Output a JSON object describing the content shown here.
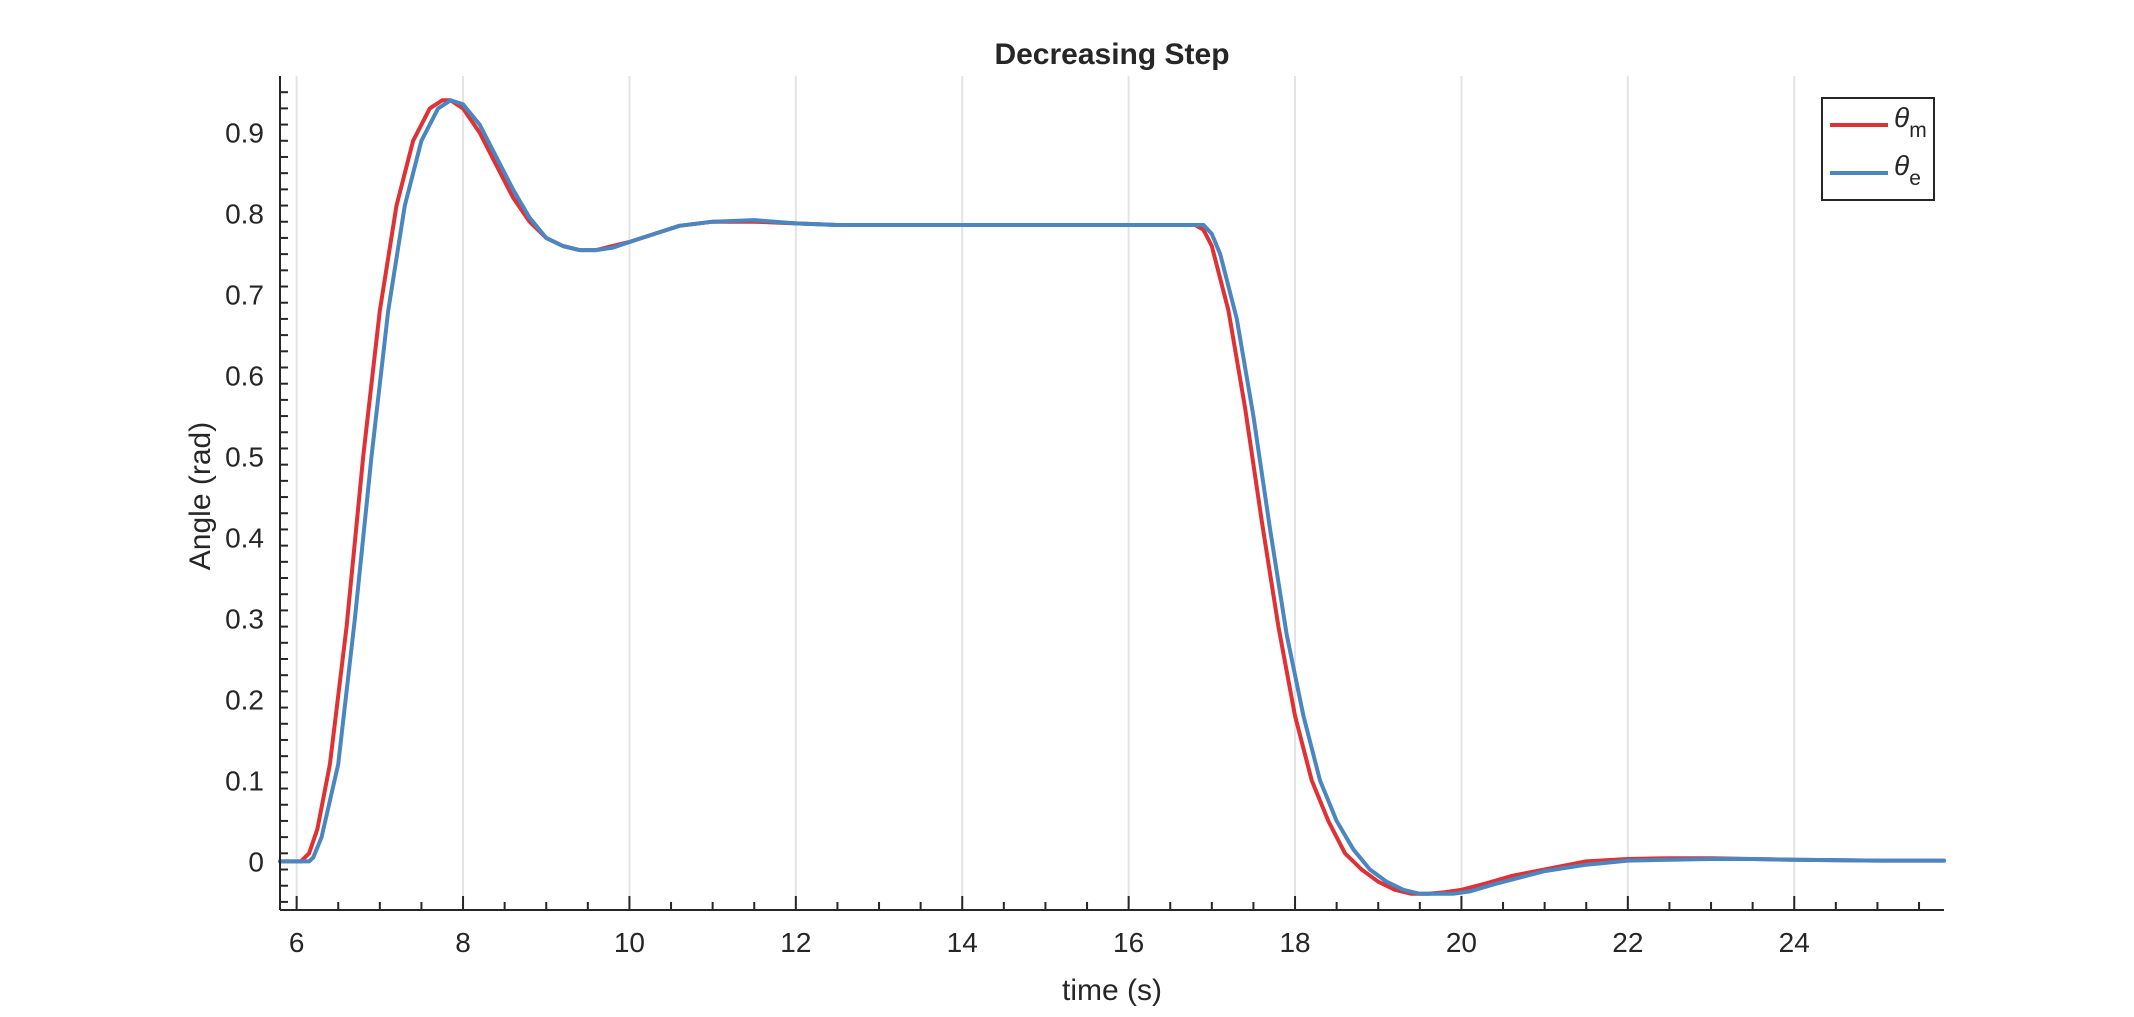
{
  "chart_data": {
    "type": "line",
    "title": "Decreasing Step",
    "xlabel": "time (s)",
    "ylabel": "Angle (rad)",
    "xlim": [
      5.8,
      25.8
    ],
    "ylim": [
      -0.06,
      0.97
    ],
    "xticks": [
      6,
      8,
      10,
      12,
      14,
      16,
      18,
      20,
      22,
      24
    ],
    "yticks": [
      0,
      0.1,
      0.2,
      0.3,
      0.4,
      0.5,
      0.6,
      0.7,
      0.8,
      0.9
    ],
    "xtick_labels": [
      "6",
      "8",
      "10",
      "12",
      "14",
      "16",
      "18",
      "20",
      "22",
      "24"
    ],
    "ytick_labels": [
      "0",
      "0.1",
      "0.2",
      "0.3",
      "0.4",
      "0.5",
      "0.6",
      "0.7",
      "0.8",
      "0.9"
    ],
    "grid": "vertical",
    "legend_position": "top-right",
    "series": [
      {
        "name": "θm",
        "legend_symbol": "θ",
        "legend_subscript": "m",
        "color": "#e03134",
        "x": [
          5.8,
          6.05,
          6.15,
          6.25,
          6.4,
          6.6,
          6.8,
          7.0,
          7.2,
          7.4,
          7.6,
          7.75,
          7.85,
          8.0,
          8.2,
          8.4,
          8.6,
          8.8,
          9.0,
          9.2,
          9.4,
          9.6,
          9.8,
          10.0,
          10.3,
          10.6,
          11.0,
          11.5,
          12.0,
          12.5,
          13.0,
          14.0,
          15.0,
          16.0,
          16.8,
          16.9,
          17.0,
          17.2,
          17.4,
          17.6,
          17.8,
          18.0,
          18.2,
          18.4,
          18.6,
          18.8,
          19.0,
          19.2,
          19.4,
          19.6,
          19.8,
          20.0,
          20.3,
          20.6,
          21.0,
          21.5,
          22.0,
          22.5,
          23.0,
          23.5,
          24.0,
          25.0,
          25.8
        ],
        "y": [
          0.0,
          0.0,
          0.01,
          0.04,
          0.12,
          0.29,
          0.5,
          0.68,
          0.81,
          0.89,
          0.93,
          0.94,
          0.94,
          0.93,
          0.9,
          0.86,
          0.82,
          0.79,
          0.77,
          0.76,
          0.755,
          0.755,
          0.76,
          0.765,
          0.775,
          0.785,
          0.79,
          0.79,
          0.788,
          0.786,
          0.786,
          0.786,
          0.786,
          0.786,
          0.786,
          0.78,
          0.76,
          0.68,
          0.56,
          0.42,
          0.29,
          0.18,
          0.1,
          0.05,
          0.01,
          -0.01,
          -0.025,
          -0.035,
          -0.04,
          -0.04,
          -0.038,
          -0.035,
          -0.027,
          -0.018,
          -0.01,
          0.0,
          0.003,
          0.004,
          0.004,
          0.003,
          0.002,
          0.001,
          0.001
        ]
      },
      {
        "name": "θe",
        "legend_symbol": "θ",
        "legend_subscript": "e",
        "color": "#4a86c0",
        "x": [
          5.8,
          6.15,
          6.2,
          6.3,
          6.5,
          6.7,
          6.9,
          7.1,
          7.3,
          7.5,
          7.7,
          7.85,
          8.0,
          8.2,
          8.4,
          8.6,
          8.8,
          9.0,
          9.2,
          9.4,
          9.6,
          9.8,
          10.0,
          10.3,
          10.6,
          11.0,
          11.5,
          12.0,
          12.5,
          13.0,
          14.0,
          15.0,
          16.0,
          16.9,
          17.0,
          17.1,
          17.3,
          17.5,
          17.7,
          17.9,
          18.1,
          18.3,
          18.5,
          18.7,
          18.9,
          19.1,
          19.3,
          19.5,
          19.7,
          19.9,
          20.1,
          20.4,
          20.7,
          21.0,
          21.5,
          22.0,
          22.5,
          23.0,
          23.5,
          24.0,
          25.0,
          25.8
        ],
        "y": [
          0.0,
          0.0,
          0.005,
          0.03,
          0.12,
          0.3,
          0.5,
          0.68,
          0.81,
          0.89,
          0.93,
          0.94,
          0.935,
          0.91,
          0.87,
          0.83,
          0.795,
          0.77,
          0.76,
          0.755,
          0.755,
          0.758,
          0.765,
          0.775,
          0.785,
          0.79,
          0.792,
          0.788,
          0.786,
          0.786,
          0.786,
          0.786,
          0.786,
          0.786,
          0.775,
          0.75,
          0.67,
          0.55,
          0.41,
          0.28,
          0.18,
          0.1,
          0.05,
          0.015,
          -0.01,
          -0.025,
          -0.035,
          -0.04,
          -0.04,
          -0.04,
          -0.037,
          -0.028,
          -0.02,
          -0.012,
          -0.004,
          0.001,
          0.002,
          0.003,
          0.003,
          0.002,
          0.001,
          0.001
        ]
      }
    ]
  }
}
